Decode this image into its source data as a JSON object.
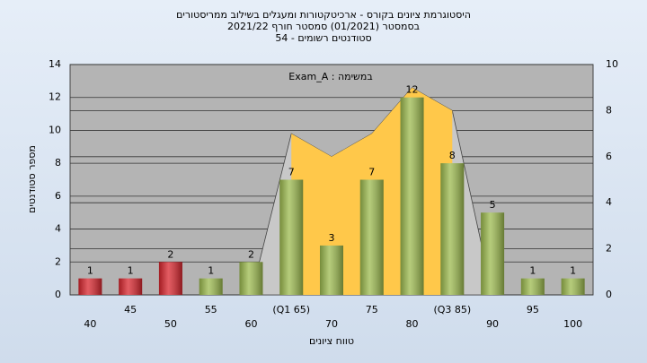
{
  "chart_data": {
    "type": "bar",
    "title": [
      "היסטוגרמת ציונים בקורס - ארכיטקטורות ומעגלים בשילוב ממריסטורים",
      "בסמסטר  (01/2021)  סמסטר חורף 2021/22",
      "סטודנטים רשומים - 54"
    ],
    "annotation": "Exam_A : במשימה",
    "y_label": "מספר סטודנטים",
    "x_label": "טווח ציונים",
    "categories": [
      "40",
      "45",
      "50",
      "55",
      "60",
      "(Q1 65)",
      "70",
      "75",
      "80",
      "(Q3 85)",
      "90",
      "95",
      "100"
    ],
    "values": [
      1,
      1,
      2,
      1,
      2,
      7,
      3,
      7,
      12,
      8,
      5,
      1,
      1
    ],
    "colors": [
      "#d9262e",
      "#d9262e",
      "#d9262e",
      "#9dbb4f",
      "#9dbb4f",
      "#9dbb4f",
      "#9dbb4f",
      "#9dbb4f",
      "#9dbb4f",
      "#9dbb4f",
      "#9dbb4f",
      "#9dbb4f",
      "#9dbb4f"
    ],
    "ylim": [
      0,
      14
    ],
    "yticks": [
      0,
      2,
      4,
      6,
      8,
      10,
      12,
      14
    ],
    "y2lim": [
      0,
      10
    ],
    "y2ticks": [
      0,
      2,
      4,
      6,
      8,
      10
    ],
    "areas": [
      {
        "axis": "y2",
        "color": "#c8c8c8",
        "values": [
          null,
          null,
          null,
          null,
          0,
          7,
          6,
          7,
          9,
          8,
          0,
          null,
          null
        ]
      },
      {
        "axis": "y2",
        "color": "#ffc84a",
        "values": [
          null,
          null,
          null,
          null,
          null,
          7,
          6,
          7,
          9,
          8,
          null,
          null,
          null
        ]
      }
    ],
    "grid": true
  }
}
